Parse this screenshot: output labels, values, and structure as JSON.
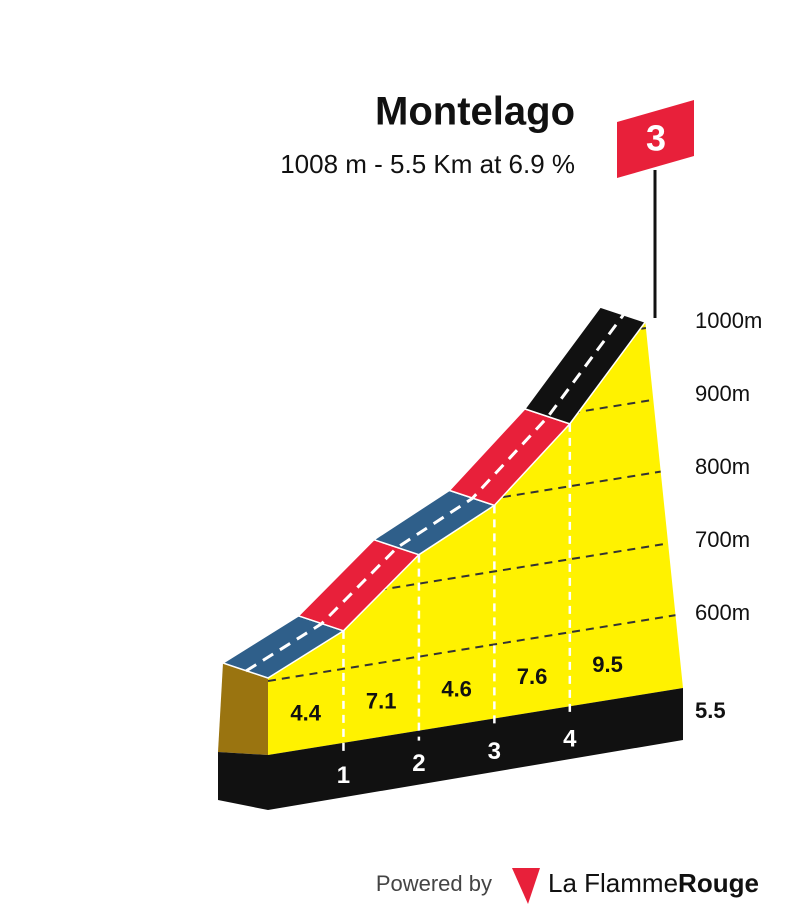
{
  "chart_data": {
    "type": "climb-profile",
    "title": "Montelago",
    "subtitle": "1008 m - 5.5 Km at 6.9 %",
    "category": "3",
    "values": [
      4.4,
      7.1,
      4.6,
      7.6,
      9.5
    ],
    "colors": [
      "#2f5f8a",
      "#e8203a",
      "#2f5f8a",
      "#e8203a",
      "#111111"
    ],
    "xlim": [
      0,
      5.5
    ],
    "xticks": [
      1,
      2,
      3,
      4
    ],
    "ylim": [
      600,
      1000
    ],
    "yticks": [
      {
        "value": 600,
        "label": "600m"
      },
      {
        "value": 700,
        "label": "700m"
      },
      {
        "value": 800,
        "label": "800m"
      },
      {
        "value": 900,
        "label": "900m"
      },
      {
        "value": 1000,
        "label": "1000m"
      }
    ],
    "grid": true
  },
  "footer": {
    "powered": "Powered by",
    "brand": "La Flamme",
    "brand_bold": "Rouge"
  }
}
